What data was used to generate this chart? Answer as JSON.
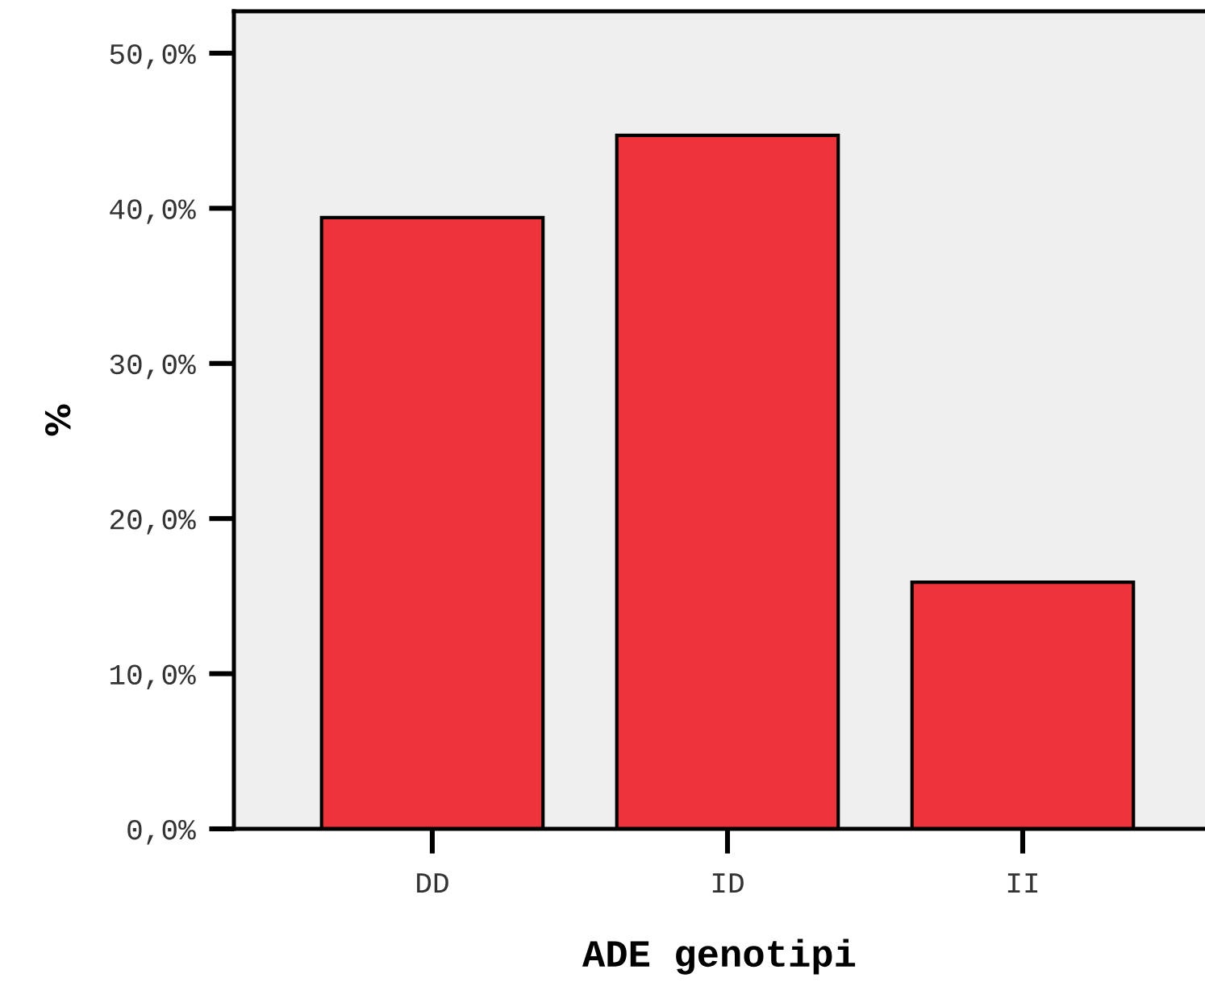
{
  "chart_data": {
    "type": "bar",
    "xlabel": "ADE genotipi",
    "ylabel": "%",
    "categories": [
      "DD",
      "ID",
      "II"
    ],
    "values": [
      39.4,
      44.7,
      15.9
    ],
    "color": "#ef333a",
    "ylim": [
      0,
      52.7
    ],
    "yticks": [
      {
        "value": 0,
        "label": "0,0%"
      },
      {
        "value": 10,
        "label": "10,0%"
      },
      {
        "value": 20,
        "label": "20,0%"
      },
      {
        "value": 30,
        "label": "30,0%"
      },
      {
        "value": 40,
        "label": "40,0%"
      },
      {
        "value": 50,
        "label": "50,0%"
      }
    ],
    "grid": false,
    "legend": false
  }
}
